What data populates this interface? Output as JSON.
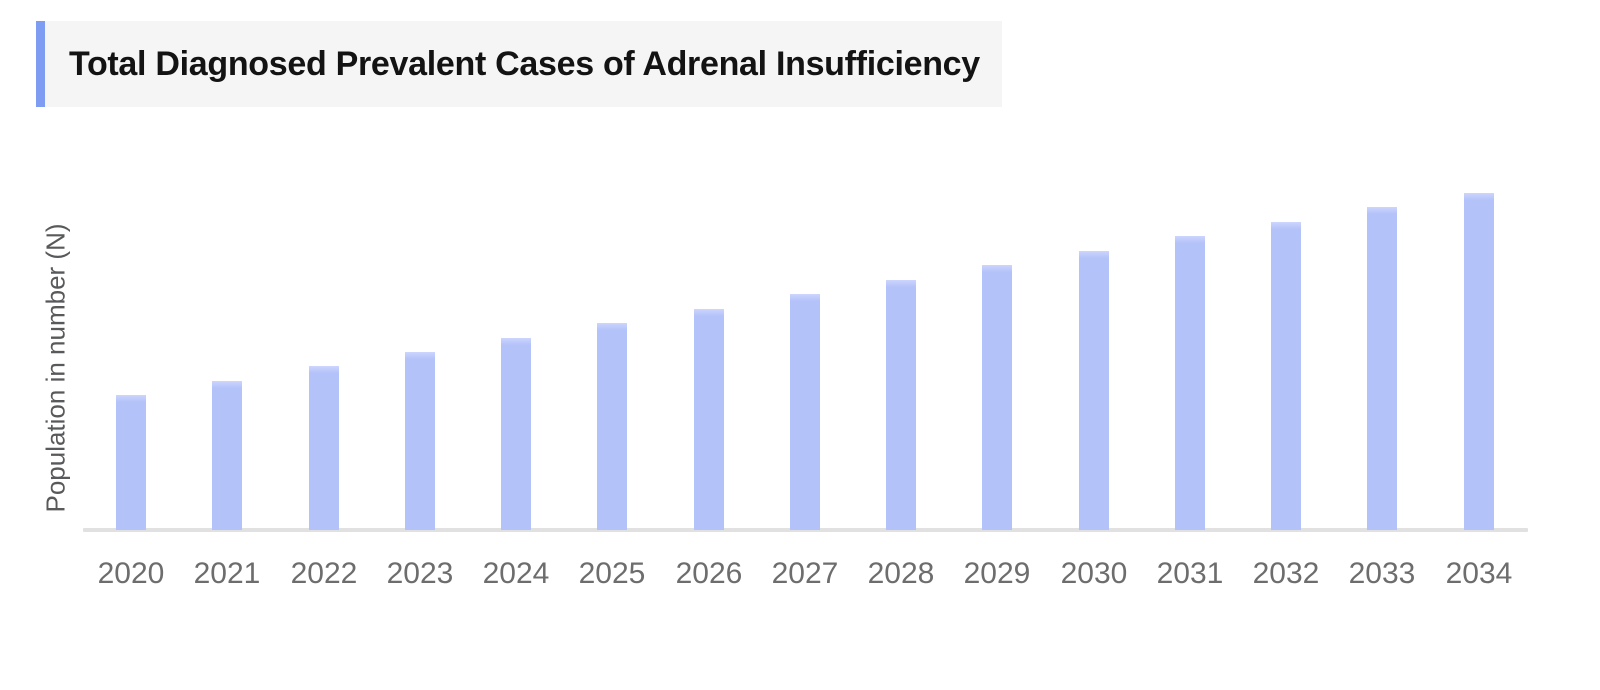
{
  "header": {
    "title": "Total Diagnosed Prevalent Cases of Adrenal Insufficiency",
    "accent_color": "#7d9cf2",
    "background_color": "#f5f5f6",
    "text_color": "#131313"
  },
  "chart_data": {
    "type": "bar",
    "title": "Total Diagnosed Prevalent Cases of Adrenal Insufficiency",
    "xlabel": "",
    "ylabel": "Population in number (N)",
    "categories": [
      "2020",
      "2021",
      "2022",
      "2023",
      "2024",
      "2025",
      "2026",
      "2027",
      "2028",
      "2029",
      "2030",
      "2031",
      "2032",
      "2033",
      "2034"
    ],
    "values": [
      40.0,
      44.3,
      48.6,
      52.9,
      57.1,
      61.4,
      65.7,
      70.0,
      74.3,
      78.6,
      82.9,
      87.1,
      91.4,
      95.7,
      100.0
    ],
    "value_axis_note": "Y axis shows no numeric tick labels; values are relative bar heights expressed as percent of the 2034 bar",
    "trend": "steady linear increase from 2020 to 2034",
    "bar_color": "#b4c2fa",
    "bar_top_highlight_color": "#ccd5fc",
    "axis_line_color": "#e1e1e1",
    "tick_label_color": "#6d6d6d",
    "ylabel_color": "#58595b",
    "grid": false,
    "legend": false
  }
}
